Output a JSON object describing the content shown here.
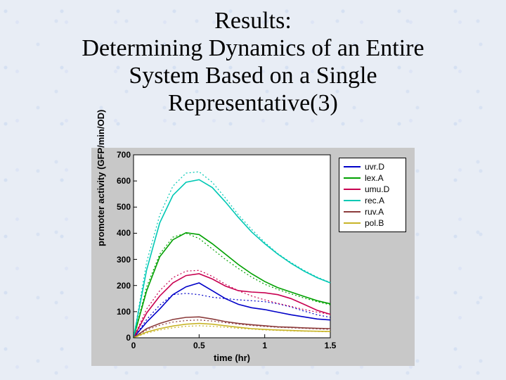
{
  "title": {
    "line1": "Results:",
    "line2": "Determining Dynamics of an Entire",
    "line3": "System Based on a Single",
    "line4": "Representative(3)",
    "font_family": "Times New Roman",
    "font_size_pt": 26,
    "color": "#000000"
  },
  "background": {
    "page_color": "#e8edf5",
    "texture_accent": "#cfd9ee"
  },
  "chart": {
    "type": "line",
    "outer_background": "#c8c8c8",
    "plot_background": "#ffffff",
    "axis_color": "#000000",
    "tick_font_size": 12,
    "label_font_size": 13,
    "xlabel": "time (hr)",
    "ylabel": "promoter activity (GFP/min/OD)",
    "xlim": [
      0,
      1.5
    ],
    "ylim": [
      0,
      700
    ],
    "xticks": [
      0,
      0.5,
      1,
      1.5
    ],
    "yticks": [
      0,
      100,
      200,
      300,
      400,
      500,
      600,
      700
    ],
    "line_width": 1.6,
    "dotted_line_width": 1.2,
    "series": [
      {
        "name": "uvr.D",
        "color": "#0000c8",
        "dash": "solid",
        "x": [
          0,
          0.1,
          0.2,
          0.3,
          0.4,
          0.5,
          0.6,
          0.7,
          0.8,
          0.9,
          1.0,
          1.1,
          1.2,
          1.3,
          1.4,
          1.5
        ],
        "y": [
          0,
          60,
          110,
          165,
          195,
          210,
          180,
          150,
          128,
          115,
          108,
          98,
          88,
          80,
          72,
          68
        ]
      },
      {
        "name": "lex.A",
        "color": "#00a000",
        "dash": "solid",
        "x": [
          0,
          0.1,
          0.2,
          0.3,
          0.4,
          0.5,
          0.6,
          0.7,
          0.8,
          0.9,
          1.0,
          1.1,
          1.2,
          1.3,
          1.4,
          1.5
        ],
        "y": [
          0,
          180,
          310,
          375,
          402,
          395,
          360,
          320,
          280,
          245,
          215,
          192,
          175,
          158,
          142,
          130
        ]
      },
      {
        "name": "umu.D",
        "color": "#c80050",
        "dash": "solid",
        "x": [
          0,
          0.1,
          0.2,
          0.3,
          0.4,
          0.5,
          0.6,
          0.7,
          0.8,
          0.9,
          1.0,
          1.1,
          1.2,
          1.3,
          1.4,
          1.5
        ],
        "y": [
          0,
          95,
          160,
          210,
          238,
          245,
          225,
          198,
          180,
          175,
          172,
          165,
          150,
          128,
          105,
          90
        ]
      },
      {
        "name": "rec.A",
        "color": "#00c8b4",
        "dash": "solid",
        "x": [
          0,
          0.1,
          0.2,
          0.3,
          0.4,
          0.5,
          0.6,
          0.7,
          0.8,
          0.9,
          1.0,
          1.1,
          1.2,
          1.3,
          1.4,
          1.5
        ],
        "y": [
          0,
          260,
          440,
          545,
          595,
          605,
          575,
          520,
          460,
          405,
          360,
          320,
          285,
          255,
          230,
          210
        ]
      },
      {
        "name": "ruv.A",
        "color": "#8c3c3c",
        "dash": "solid",
        "x": [
          0,
          0.1,
          0.2,
          0.3,
          0.4,
          0.5,
          0.6,
          0.7,
          0.8,
          0.9,
          1.0,
          1.1,
          1.2,
          1.3,
          1.4,
          1.5
        ],
        "y": [
          0,
          35,
          55,
          70,
          78,
          80,
          72,
          62,
          55,
          50,
          46,
          42,
          40,
          38,
          36,
          35
        ]
      },
      {
        "name": "pol.B",
        "color": "#c8b428",
        "dash": "solid",
        "x": [
          0,
          0.1,
          0.2,
          0.3,
          0.4,
          0.5,
          0.6,
          0.7,
          0.8,
          0.9,
          1.0,
          1.1,
          1.2,
          1.3,
          1.4,
          1.5
        ],
        "y": [
          0,
          22,
          35,
          45,
          52,
          55,
          52,
          46,
          40,
          35,
          32,
          30,
          28,
          26,
          25,
          24
        ]
      }
    ],
    "predicted_series": [
      {
        "name": "uvr.D-pred",
        "color": "#0000c8",
        "dash": "dotted",
        "x": [
          0,
          0.1,
          0.2,
          0.3,
          0.4,
          0.5,
          0.6,
          0.7,
          0.8,
          0.9,
          1.0,
          1.1,
          1.2,
          1.3,
          1.4,
          1.5
        ],
        "y": [
          0,
          70,
          125,
          165,
          170,
          165,
          155,
          150,
          145,
          142,
          138,
          130,
          118,
          102,
          88,
          78
        ]
      },
      {
        "name": "lex.A-pred",
        "color": "#00a000",
        "dash": "dotted",
        "x": [
          0,
          0.1,
          0.2,
          0.3,
          0.4,
          0.5,
          0.6,
          0.7,
          0.8,
          0.9,
          1.0,
          1.1,
          1.2,
          1.3,
          1.4,
          1.5
        ],
        "y": [
          0,
          195,
          320,
          385,
          400,
          380,
          340,
          300,
          265,
          232,
          205,
          185,
          168,
          152,
          138,
          126
        ]
      },
      {
        "name": "umu.D-pred",
        "color": "#c80050",
        "dash": "dotted",
        "x": [
          0,
          0.1,
          0.2,
          0.3,
          0.4,
          0.5,
          0.6,
          0.7,
          0.8,
          0.9,
          1.0,
          1.1,
          1.2,
          1.3,
          1.4,
          1.5
        ],
        "y": [
          0,
          110,
          180,
          230,
          255,
          258,
          235,
          205,
          180,
          160,
          145,
          132,
          120,
          108,
          98,
          90
        ]
      },
      {
        "name": "rec.A-pred",
        "color": "#00c8b4",
        "dash": "dotted",
        "x": [
          0,
          0.1,
          0.2,
          0.3,
          0.4,
          0.5,
          0.6,
          0.7,
          0.8,
          0.9,
          1.0,
          1.1,
          1.2,
          1.3,
          1.4,
          1.5
        ],
        "y": [
          0,
          290,
          470,
          580,
          630,
          635,
          595,
          535,
          470,
          415,
          365,
          322,
          288,
          258,
          232,
          212
        ]
      },
      {
        "name": "ruv.A-pred",
        "color": "#8c3c3c",
        "dash": "dotted",
        "x": [
          0,
          0.1,
          0.2,
          0.3,
          0.4,
          0.5,
          0.6,
          0.7,
          0.8,
          0.9,
          1.0,
          1.1,
          1.2,
          1.3,
          1.4,
          1.5
        ],
        "y": [
          0,
          30,
          48,
          60,
          66,
          68,
          64,
          58,
          52,
          47,
          43,
          40,
          38,
          36,
          34,
          32
        ]
      },
      {
        "name": "pol.B-pred",
        "color": "#c8b428",
        "dash": "dotted",
        "x": [
          0,
          0.1,
          0.2,
          0.3,
          0.4,
          0.5,
          0.6,
          0.7,
          0.8,
          0.9,
          1.0,
          1.1,
          1.2,
          1.3,
          1.4,
          1.5
        ],
        "y": [
          0,
          18,
          30,
          38,
          44,
          46,
          44,
          40,
          36,
          33,
          30,
          28,
          26,
          25,
          24,
          23
        ]
      }
    ],
    "legend": {
      "position": "right-outside",
      "background": "#ffffff",
      "border_color": "#000000",
      "items": [
        {
          "label": "uvr.D",
          "color": "#0000c8"
        },
        {
          "label": "lex.A",
          "color": "#00a000"
        },
        {
          "label": "umu.D",
          "color": "#c80050"
        },
        {
          "label": "rec.A",
          "color": "#00c8b4"
        },
        {
          "label": "ruv.A",
          "color": "#8c3c3c"
        },
        {
          "label": "pol.B",
          "color": "#c8b428"
        }
      ]
    }
  }
}
